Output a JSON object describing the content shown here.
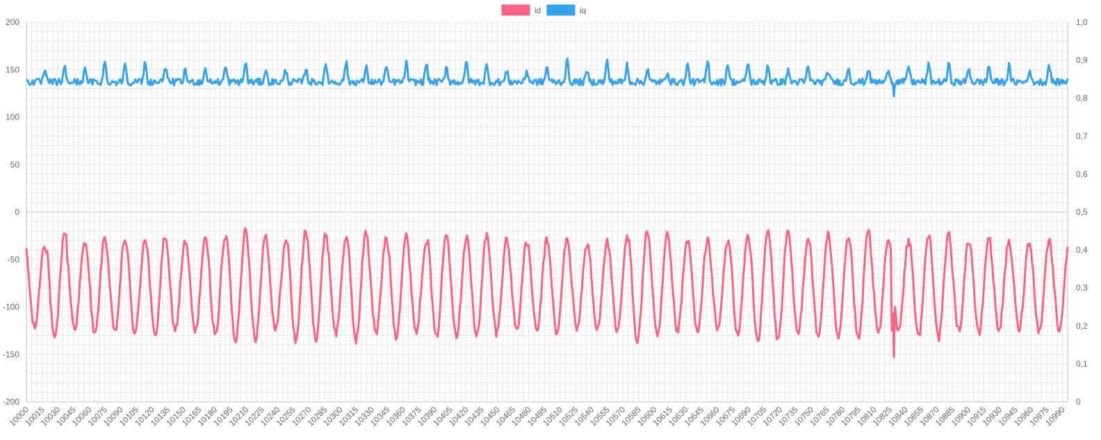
{
  "chart_data": {
    "type": "line",
    "title": "",
    "xlabel": "",
    "ylabel": "",
    "grid": true,
    "legend_position": "top-center",
    "x_start": 10000,
    "x_end": 10995,
    "x_ticks": [
      "10000",
      "10015",
      "10030",
      "10045",
      "10060",
      "10075",
      "10090",
      "10105",
      "10120",
      "10135",
      "10150",
      "10165",
      "10180",
      "10195",
      "10210",
      "10225",
      "10240",
      "10255",
      "10270",
      "10285",
      "10300",
      "10315",
      "10330",
      "10345",
      "10360",
      "10375",
      "10390",
      "10405",
      "10420",
      "10435",
      "10450",
      "10465",
      "10480",
      "10495",
      "10510",
      "10525",
      "10540",
      "10555",
      "10570",
      "10585",
      "10600",
      "10615",
      "10630",
      "10645",
      "10660",
      "10675",
      "10690",
      "10705",
      "10720",
      "10735",
      "10750",
      "10765",
      "10780",
      "10795",
      "10810",
      "10825",
      "10840",
      "10855",
      "10870",
      "10885",
      "10900",
      "10915",
      "10930",
      "10945",
      "10960",
      "10975",
      "10990"
    ],
    "y_left": {
      "range": [
        -200,
        200
      ],
      "ticks": [
        "200",
        "150",
        "100",
        "50",
        "0",
        "-50",
        "-100",
        "-150",
        "-200"
      ]
    },
    "y_right": {
      "range": [
        0,
        1
      ],
      "ticks": [
        "1,0",
        "0,9",
        "0,8",
        "0,7",
        "0,6",
        "0,5",
        "0,4",
        "0,3",
        "0,2",
        "0,1",
        "0"
      ]
    },
    "series": [
      {
        "name": "id",
        "color": "#ff6384",
        "period": 19.2,
        "center": -78,
        "amplitude_range": [
          44,
          58
        ],
        "approx_range": [
          -153,
          -9
        ]
      },
      {
        "name": "iq",
        "color": "#36a2eb",
        "period": 19.2,
        "baseline": 137,
        "peak_range": [
          148,
          160
        ],
        "approx_range": [
          122,
          160
        ]
      }
    ],
    "annotations": [
      {
        "series": "id",
        "x": 10829,
        "y": -153
      },
      {
        "series": "iq",
        "x": 10829,
        "y": 122
      }
    ]
  }
}
